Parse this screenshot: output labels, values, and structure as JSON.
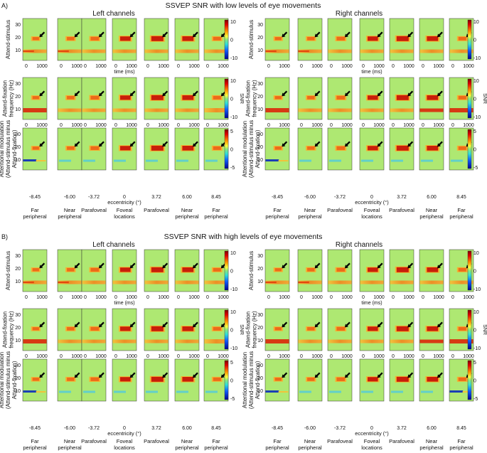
{
  "panels": [
    {
      "label": "A)",
      "title": "SSVEP SNR with low levels of eye movements",
      "left_title": "Left channels",
      "right_title": "Right channels"
    },
    {
      "label": "B)",
      "title": "SSVEP SNR with high levels of eye movements",
      "left_title": "Left channels",
      "right_title": "Right channels"
    }
  ],
  "rows": [
    {
      "label_lines": [
        "Attend-stimulus"
      ],
      "cbar_ticks": [
        "10",
        "0",
        "-10"
      ],
      "cbar_label": ""
    },
    {
      "label_lines": [
        "Attend-fixation",
        "frequency (Hz)"
      ],
      "cbar_ticks": [
        "10",
        "0",
        "-10"
      ],
      "cbar_label": "SNR"
    },
    {
      "label_lines": [
        "Attentional modulation",
        "(Attend-stimulus minus",
        "Attend-fixation)"
      ],
      "cbar_ticks": [
        "5",
        "0",
        "-5"
      ],
      "cbar_label": ""
    }
  ],
  "y_ticks": [
    "30",
    "20",
    "10"
  ],
  "x_ticks": [
    "0",
    "1000"
  ],
  "x_axis_label": "time (ms)",
  "eccentricity_values": [
    "-8.45",
    "-6.00",
    "-3.72",
    "0",
    "3.72",
    "6.00",
    "8.45"
  ],
  "eccentricity_label": "eccentricity (°)",
  "locations": [
    [
      "Far",
      "peripheral"
    ],
    [
      "Near",
      "peripheral"
    ],
    [
      "Parafoveal"
    ],
    [
      "Foveal",
      "locations"
    ],
    [
      "Parafoveal"
    ],
    [
      "Near",
      "peripheral"
    ],
    [
      "Far",
      "peripheral"
    ]
  ],
  "colors": {
    "background_field": "#aee872",
    "band_10hz": "#f28a2a",
    "peak_20hz": "#c81e0a",
    "negative_band": "#1a3fb5",
    "arrow": "#000000"
  }
}
